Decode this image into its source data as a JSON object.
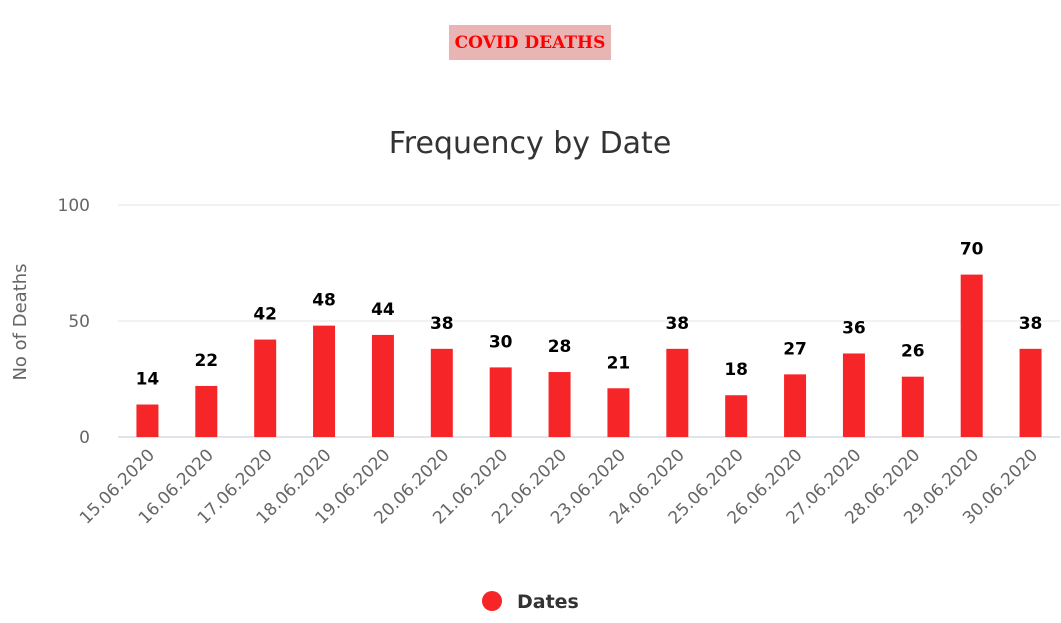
{
  "badge": {
    "label": "COVID DEATHS"
  },
  "chart_data": {
    "type": "bar",
    "title": "Frequency by Date",
    "ylabel": "No of Deaths",
    "ylim": [
      0,
      100
    ],
    "yticks": [
      0,
      50,
      100
    ],
    "grid": true,
    "legend": "bottom-center",
    "categories": [
      "15.06.2020",
      "16.06.2020",
      "17.06.2020",
      "18.06.2020",
      "19.06.2020",
      "20.06.2020",
      "21.06.2020",
      "22.06.2020",
      "23.06.2020",
      "24.06.2020",
      "25.06.2020",
      "26.06.2020",
      "27.06.2020",
      "28.06.2020",
      "29.06.2020",
      "30.06.2020"
    ],
    "series": [
      {
        "name": "Dates",
        "color": "#f62528",
        "values": [
          14,
          22,
          42,
          48,
          44,
          38,
          30,
          28,
          21,
          38,
          18,
          27,
          36,
          26,
          70,
          38
        ]
      }
    ]
  }
}
